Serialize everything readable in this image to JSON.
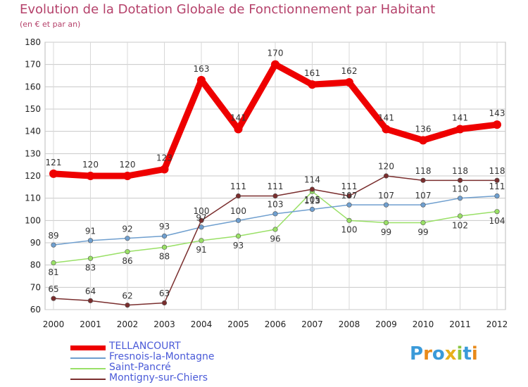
{
  "header": {
    "title": "Evolution de la Dotation Globale de Fonctionnement par Habitant",
    "subtitle": "(en € et par an)"
  },
  "logo": {
    "text": "Proxiti"
  },
  "chart_data": {
    "type": "line",
    "title": "Evolution de la Dotation Globale de Fonctionnement par Habitant",
    "subtitle": "(en € et par an)",
    "xlabel": "",
    "ylabel": "",
    "ylim": [
      60,
      180
    ],
    "ytick_step": 10,
    "grid": true,
    "legend_position": "bottom-left",
    "x": [
      "2000",
      "2001",
      "2002",
      "2003",
      "2004",
      "2005",
      "2006",
      "2007",
      "2008",
      "2009",
      "2010",
      "2011",
      "2012"
    ],
    "series": [
      {
        "name": "TELLANCOURT",
        "color": "#ee0000",
        "values": [
          121,
          120,
          120,
          123,
          163,
          141,
          170,
          161,
          162,
          141,
          136,
          141,
          143
        ]
      },
      {
        "name": "Fresnois-la-Montagne",
        "color": "#6f9fcf",
        "values": [
          89,
          91,
          92,
          93,
          97,
          100,
          103,
          105,
          107,
          107,
          107,
          110,
          111
        ]
      },
      {
        "name": "Saint-Pancré",
        "color": "#99e066",
        "values": [
          81,
          83,
          86,
          88,
          91,
          93,
          96,
          113,
          100,
          99,
          99,
          102,
          104
        ]
      },
      {
        "name": "Montigny-sur-Chiers",
        "color": "#7a2e2e",
        "values": [
          65,
          64,
          62,
          63,
          100,
          111,
          111,
          114,
          111,
          120,
          118,
          118,
          118
        ]
      }
    ]
  }
}
